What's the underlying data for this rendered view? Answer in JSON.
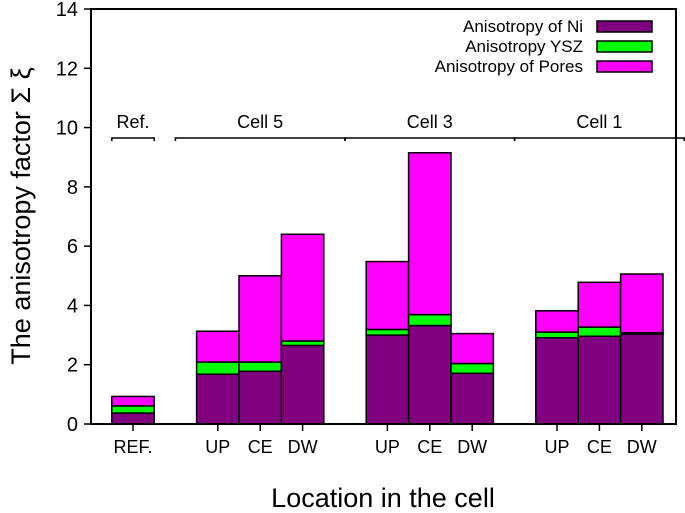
{
  "chart_data": {
    "type": "bar",
    "stacked": true,
    "title": "",
    "xlabel": "Location in the cell",
    "ylabel": "The anisotropy factor Σ ξ",
    "ylim": [
      0,
      14
    ],
    "yticks": [
      0,
      2,
      4,
      6,
      8,
      10,
      12,
      14
    ],
    "grid": false,
    "legend_position": "top-right",
    "categories": [
      "REF.",
      "UP",
      "CE",
      "DW",
      "UP",
      "CE",
      "DW",
      "UP",
      "CE",
      "DW"
    ],
    "groups": [
      {
        "label": "Ref.",
        "members": [
          0
        ]
      },
      {
        "label": "Cell 5",
        "members": [
          1,
          2,
          3
        ]
      },
      {
        "label": "Cell 3",
        "members": [
          4,
          5,
          6
        ]
      },
      {
        "label": "Cell 1",
        "members": [
          7,
          8,
          9
        ]
      }
    ],
    "series": [
      {
        "name": "Anisotropy of Ni",
        "color": "#800080",
        "values": [
          0.37,
          1.68,
          1.78,
          2.65,
          3.0,
          3.32,
          1.71,
          2.91,
          2.96,
          3.03
        ]
      },
      {
        "name": "Anisotropy YSZ",
        "color": "#00ff00",
        "values": [
          0.24,
          0.41,
          0.31,
          0.15,
          0.19,
          0.37,
          0.33,
          0.19,
          0.31,
          0.05
        ]
      },
      {
        "name": "Anisotropy of Pores",
        "color": "#ff00ff",
        "values": [
          0.32,
          1.04,
          2.91,
          3.6,
          2.29,
          5.46,
          1.01,
          0.72,
          1.51,
          1.98
        ]
      }
    ]
  }
}
